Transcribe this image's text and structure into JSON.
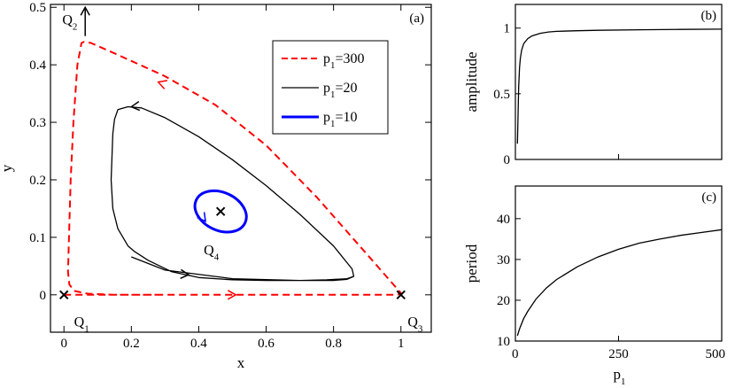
{
  "chart_data": [
    {
      "panel": "(a)",
      "type": "line",
      "xlabel": "x",
      "ylabel": "y",
      "xlim": [
        -0.04,
        1.09
      ],
      "ylim": [
        -0.065,
        0.505
      ],
      "xticks": [
        0,
        0.2,
        0.4,
        0.6,
        0.8,
        1
      ],
      "xtick_labels": [
        "0",
        "0.2",
        "0.4",
        "0.6",
        "0.8",
        "1"
      ],
      "yticks": [
        0,
        0.1,
        0.2,
        0.3,
        0.4,
        0.5
      ],
      "ytick_labels": [
        "0",
        "0.1",
        "0.2",
        "0.3",
        "0.4",
        "0.5"
      ],
      "legend_position": "top-right",
      "series": [
        {
          "name": "p1=300",
          "label_base": "p",
          "label_sub": "1",
          "label_rest": "=300",
          "style": "dashed",
          "color": "#ff0000",
          "x": [
            0.0,
            0.1,
            0.3,
            0.5,
            0.7,
            0.9,
            0.99,
            1.0,
            0.9,
            0.75,
            0.6,
            0.45,
            0.3,
            0.15,
            0.08,
            0.06,
            0.052,
            0.04,
            0.028,
            0.02,
            0.015,
            0.012,
            0.016,
            0.03,
            0.07,
            0.15,
            0.3
          ],
          "y": [
            0.0,
            0.0,
            0.0,
            0.0,
            0.0,
            0.0,
            0.0,
            0.003,
            0.07,
            0.17,
            0.26,
            0.33,
            0.38,
            0.42,
            0.438,
            0.44,
            0.438,
            0.4,
            0.3,
            0.2,
            0.1,
            0.04,
            0.018,
            0.007,
            0.002,
            0.0,
            0.0
          ],
          "arrows": [
            [
              0.51,
              0.0,
              1,
              0
            ],
            [
              0.28,
              0.37,
              -1,
              0.35
            ]
          ]
        },
        {
          "name": "p1=20",
          "label_base": "p",
          "label_sub": "1",
          "label_rest": "=20",
          "style": "solid",
          "color": "#000000",
          "x": [
            0.2,
            0.3,
            0.5,
            0.7,
            0.8,
            0.84,
            0.86,
            0.855,
            0.8,
            0.7,
            0.6,
            0.5,
            0.4,
            0.3,
            0.23,
            0.19,
            0.16,
            0.15,
            0.145,
            0.14,
            0.145,
            0.16,
            0.19,
            0.21,
            0.25,
            0.32,
            0.4,
            0.5,
            0.6,
            0.7,
            0.78,
            0.84,
            0.86
          ],
          "y": [
            0.066,
            0.043,
            0.028,
            0.025,
            0.025,
            0.027,
            0.032,
            0.045,
            0.085,
            0.14,
            0.19,
            0.235,
            0.275,
            0.308,
            0.325,
            0.327,
            0.322,
            0.305,
            0.28,
            0.2,
            0.15,
            0.115,
            0.085,
            0.075,
            0.06,
            0.04,
            0.03,
            0.026,
            0.025,
            0.025,
            0.026,
            0.028,
            0.032
          ],
          "arrows": [
            [
              0.37,
              0.035,
              1,
              -0.08
            ],
            [
              0.2,
              0.327,
              -1,
              -0.1
            ]
          ]
        },
        {
          "name": "p1=10",
          "label_base": "p",
          "label_sub": "1",
          "label_rest": "=10",
          "style": "solid",
          "color": "#0000ff",
          "ellipse": {
            "cx": 0.465,
            "cy": 0.145,
            "rx": 0.08,
            "ry": 0.033,
            "angle_deg": -25
          },
          "arrows": [
            [
              0.42,
              0.128,
              0.6,
              -0.8
            ]
          ]
        }
      ],
      "fixed_points": [
        {
          "name": "Q1",
          "base": "Q",
          "sub": "1",
          "x": 0.0,
          "y": 0.0,
          "marked": true,
          "label_dx": 0.03,
          "label_dy": -0.055
        },
        {
          "name": "Q2",
          "base": "Q",
          "sub": "2",
          "x": 0.055,
          "y": 0.49,
          "marked": false,
          "label_dx": -0.06,
          "label_dy": -0.02
        },
        {
          "name": "Q3",
          "base": "Q",
          "sub": "3",
          "x": 1.0,
          "y": 0.0,
          "marked": true,
          "label_dx": 0.02,
          "label_dy": -0.055
        },
        {
          "name": "Q4",
          "base": "Q",
          "sub": "4",
          "x": 0.465,
          "y": 0.145,
          "marked": true,
          "label_dx": -0.05,
          "label_dy": -0.075
        }
      ],
      "annotation_arrow": {
        "from": [
          0.063,
          0.45
        ],
        "to": [
          0.063,
          0.5
        ]
      }
    },
    {
      "panel": "(b)",
      "type": "line",
      "xlabel": "",
      "ylabel": "amplitude",
      "xlim": [
        0,
        500
      ],
      "ylim": [
        0,
        1.18
      ],
      "yticks": [
        0,
        0.5,
        1
      ],
      "ytick_labels": [
        "0",
        "0.5",
        "1"
      ],
      "series": [
        {
          "name": "amplitude",
          "x": [
            5,
            8,
            10,
            12,
            15,
            20,
            25,
            30,
            40,
            60,
            80,
            100,
            150,
            200,
            300,
            400,
            500
          ],
          "y": [
            0.12,
            0.55,
            0.7,
            0.77,
            0.83,
            0.88,
            0.9,
            0.92,
            0.94,
            0.96,
            0.97,
            0.975,
            0.98,
            0.983,
            0.987,
            0.99,
            0.992
          ]
        }
      ]
    },
    {
      "panel": "(c)",
      "type": "line",
      "xlabel": "p1",
      "xlabel_base": "p",
      "xlabel_sub": "1",
      "ylabel": "period",
      "xlim": [
        0,
        500
      ],
      "ylim": [
        10,
        48
      ],
      "xticks": [
        0,
        250,
        500
      ],
      "xtick_labels": [
        "0",
        "250",
        "500"
      ],
      "yticks": [
        10,
        20,
        30,
        40
      ],
      "ytick_labels": [
        "10",
        "20",
        "30",
        "40"
      ],
      "series": [
        {
          "name": "period",
          "x": [
            5,
            10,
            20,
            30,
            50,
            75,
            100,
            150,
            200,
            250,
            300,
            350,
            400,
            450,
            500
          ],
          "y": [
            11.3,
            13.0,
            15.5,
            17.3,
            20.3,
            23.0,
            25.1,
            28.2,
            30.6,
            32.5,
            34.0,
            35.0,
            35.9,
            36.6,
            37.3
          ]
        }
      ]
    }
  ]
}
